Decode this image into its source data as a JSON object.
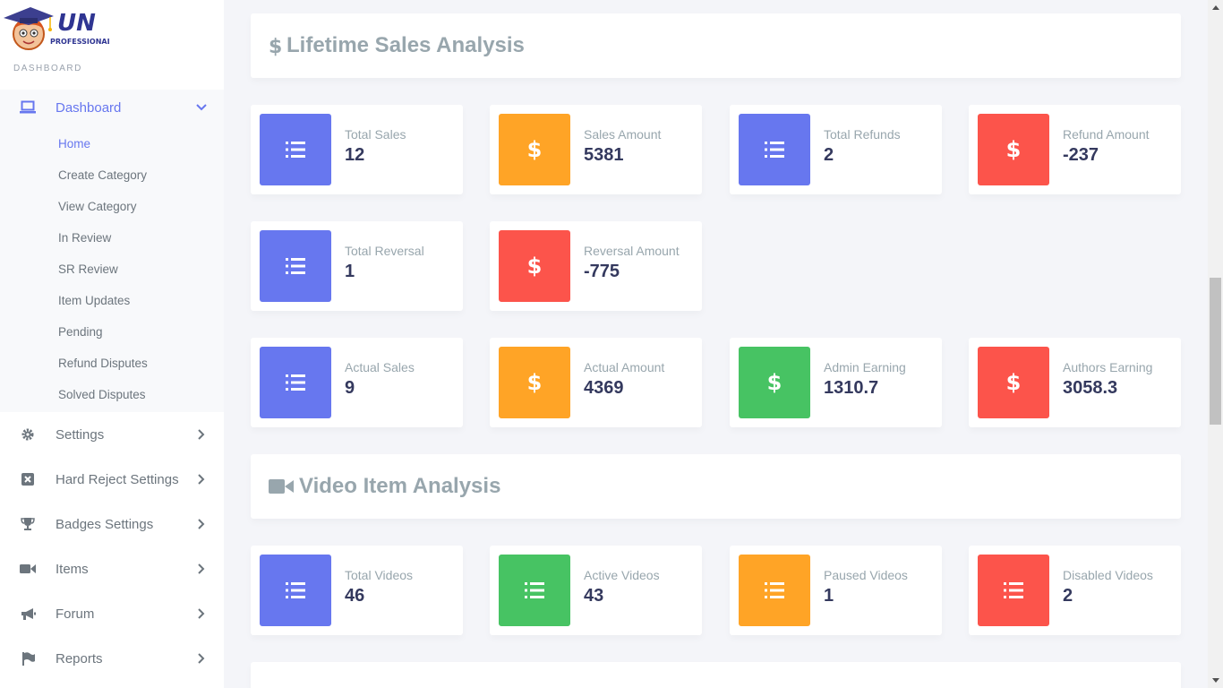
{
  "brand": {
    "logo_text": "UN",
    "logo_subtext": "PROFESSIONAL"
  },
  "sidebar": {
    "menu_header": "DASHBOARD",
    "dashboard": {
      "label": "Dashboard",
      "sub_items": [
        "Home",
        "Create Category",
        "View Category",
        "In Review",
        "SR Review",
        "Item Updates",
        "Pending",
        "Refund Disputes",
        "Solved Disputes"
      ]
    },
    "items": [
      {
        "label": "Settings",
        "icon": "gear-icon"
      },
      {
        "label": "Hard Reject Settings",
        "icon": "close-square-icon"
      },
      {
        "label": "Badges Settings",
        "icon": "trophy-icon"
      },
      {
        "label": "Items",
        "icon": "video-camera-icon"
      },
      {
        "label": "Forum",
        "icon": "megaphone-icon"
      },
      {
        "label": "Reports",
        "icon": "flag-icon"
      }
    ]
  },
  "sections": {
    "lifetime_sales": {
      "title": "Lifetime Sales Analysis",
      "icon": "dollar-icon"
    },
    "video_items": {
      "title": "Video Item Analysis",
      "icon": "video-camera-icon"
    }
  },
  "stats": {
    "total_sales": {
      "label": "Total Sales",
      "value": "12",
      "color": "#6777ef",
      "icon": "list-icon"
    },
    "sales_amount": {
      "label": "Sales Amount",
      "value": "5381",
      "color": "#ffa426",
      "icon": "dollar-icon"
    },
    "total_refunds": {
      "label": "Total Refunds",
      "value": "2",
      "color": "#6777ef",
      "icon": "list-icon"
    },
    "refund_amount": {
      "label": "Refund Amount",
      "value": "-237",
      "color": "#fc544b",
      "icon": "dollar-icon"
    },
    "total_reversal": {
      "label": "Total Reversal",
      "value": "1",
      "color": "#6777ef",
      "icon": "list-icon"
    },
    "reversal_amount": {
      "label": "Reversal Amount",
      "value": "-775",
      "color": "#fc544b",
      "icon": "dollar-icon"
    },
    "actual_sales": {
      "label": "Actual Sales",
      "value": "9",
      "color": "#6777ef",
      "icon": "list-icon"
    },
    "actual_amount": {
      "label": "Actual Amount",
      "value": "4369",
      "color": "#ffa426",
      "icon": "dollar-icon"
    },
    "admin_earning": {
      "label": "Admin Earning",
      "value": "1310.7",
      "color": "#47c363",
      "icon": "dollar-icon"
    },
    "authors_earning": {
      "label": "Authors Earning",
      "value": "3058.3",
      "color": "#fc544b",
      "icon": "dollar-icon"
    },
    "total_videos": {
      "label": "Total Videos",
      "value": "46",
      "color": "#6777ef",
      "icon": "list-icon"
    },
    "active_videos": {
      "label": "Active Videos",
      "value": "43",
      "color": "#47c363",
      "icon": "list-icon"
    },
    "paused_videos": {
      "label": "Paused Videos",
      "value": "1",
      "color": "#ffa426",
      "icon": "list-icon"
    },
    "disabled_videos": {
      "label": "Disabled Videos",
      "value": "2",
      "color": "#fc544b",
      "icon": "list-icon"
    }
  }
}
